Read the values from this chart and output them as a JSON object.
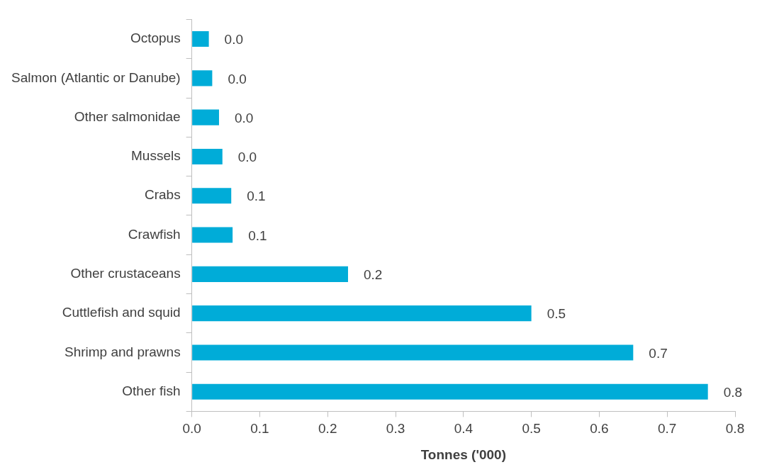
{
  "chart_data": {
    "type": "bar",
    "orientation": "horizontal",
    "xlabel": "Tonnes ('000)",
    "categories": [
      "Octopus",
      "Salmon (Atlantic or Danube)",
      "Other salmonidae",
      "Mussels",
      "Crabs",
      "Crawfish",
      "Other crustaceans",
      "Cuttlefish and squid",
      "Shrimp and prawns",
      "Other fish"
    ],
    "values": [
      0.025,
      0.03,
      0.04,
      0.045,
      0.058,
      0.06,
      0.23,
      0.5,
      0.65,
      0.76
    ],
    "value_labels": [
      "0.0",
      "0.0",
      "0.0",
      "0.0",
      "0.1",
      "0.1",
      "0.2",
      "0.5",
      "0.7",
      "0.8"
    ],
    "color": "#00acd8",
    "xlim": [
      0,
      0.8
    ],
    "xticks": [
      "0.0",
      "0.1",
      "0.2",
      "0.3",
      "0.4",
      "0.5",
      "0.6",
      "0.7",
      "0.8"
    ],
    "grid": false,
    "legend": false
  }
}
